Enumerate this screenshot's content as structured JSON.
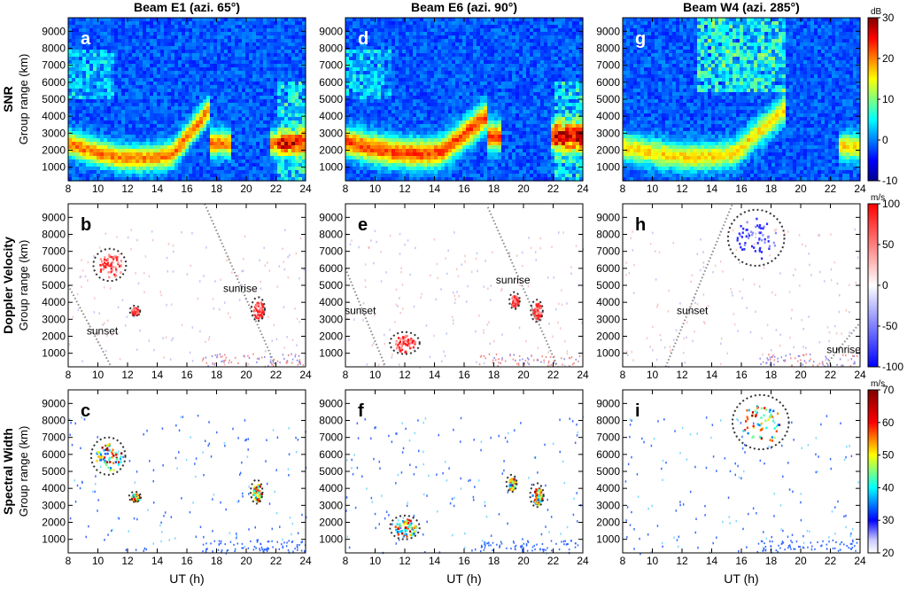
{
  "chart_data": {
    "type": "heatmap",
    "columns": [
      {
        "title": "Beam E1 (azi. 65°)"
      },
      {
        "title": "Beam E6 (azi. 90°)"
      },
      {
        "title": "Beam W4 (azi. 285°)"
      }
    ],
    "rows": [
      {
        "label": "SNR",
        "ylabel": "Group range (km)",
        "unit": "dB",
        "colorbar_ticks": [
          -10,
          0,
          10,
          20,
          30
        ],
        "crange": [
          -10,
          30
        ]
      },
      {
        "label": "Doppler Velocity",
        "ylabel": "Group range (km)",
        "unit": "m/s",
        "colorbar_ticks": [
          -100,
          -50,
          0,
          50,
          100
        ],
        "crange": [
          -100,
          100
        ]
      },
      {
        "label": "Spectral Width",
        "ylabel": "Group range (km)",
        "unit": "m/s",
        "colorbar_ticks": [
          20,
          30,
          40,
          50,
          60,
          70
        ],
        "crange": [
          20,
          70
        ]
      }
    ],
    "xlabel": "UT (h)",
    "xlim": [
      8,
      24
    ],
    "x_ticks": [
      8,
      10,
      12,
      14,
      16,
      18,
      20,
      22,
      24
    ],
    "ylim": [
      200,
      9800
    ],
    "y_ticks": [
      1000,
      2000,
      3000,
      4000,
      5000,
      6000,
      7000,
      8000,
      9000
    ],
    "panels": [
      {
        "id": "a",
        "row": 0,
        "col": 0,
        "letter": "a"
      },
      {
        "id": "b",
        "row": 1,
        "col": 0,
        "letter": "b",
        "terminators": [
          {
            "t1": 8.0,
            "r1": 5000,
            "t2": 10.9,
            "r2": 200
          },
          {
            "t1": 17.2,
            "r1": 9800,
            "t2": 22.0,
            "r2": 200
          }
        ],
        "circles": [
          {
            "t": 10.8,
            "r": 6200,
            "rt": 1.1,
            "rr": 950
          },
          {
            "t": 12.5,
            "r": 3500,
            "rt": 0.35,
            "rr": 300
          },
          {
            "t": 20.8,
            "r": 3600,
            "rt": 0.45,
            "rr": 700
          }
        ],
        "annotations": [
          {
            "text": "sunset",
            "t": 10.3,
            "r": 2100
          },
          {
            "text": "sunrise",
            "t": 19.6,
            "r": 4600
          }
        ]
      },
      {
        "id": "c",
        "row": 2,
        "col": 0,
        "letter": "c",
        "circles": [
          {
            "t": 10.7,
            "r": 5900,
            "rt": 1.15,
            "rr": 1100
          },
          {
            "t": 12.5,
            "r": 3500,
            "rt": 0.4,
            "rr": 300
          },
          {
            "t": 20.7,
            "r": 3800,
            "rt": 0.4,
            "rr": 700
          }
        ]
      },
      {
        "id": "d",
        "row": 0,
        "col": 1,
        "letter": "d"
      },
      {
        "id": "e",
        "row": 1,
        "col": 1,
        "letter": "e",
        "terminators": [
          {
            "t1": 8.0,
            "r1": 6000,
            "t2": 10.7,
            "r2": 200
          },
          {
            "t1": 17.6,
            "r1": 9600,
            "t2": 22.3,
            "r2": 200
          }
        ],
        "circles": [
          {
            "t": 12.0,
            "r": 1600,
            "rt": 1.0,
            "rr": 650
          },
          {
            "t": 19.4,
            "r": 4100,
            "rt": 0.35,
            "rr": 500
          },
          {
            "t": 20.9,
            "r": 3500,
            "rt": 0.4,
            "rr": 650
          }
        ],
        "annotations": [
          {
            "text": "sunset",
            "t": 9.0,
            "r": 3300
          },
          {
            "text": "sunrise",
            "t": 19.3,
            "r": 5100
          }
        ]
      },
      {
        "id": "f",
        "row": 2,
        "col": 1,
        "letter": "f",
        "circles": [
          {
            "t": 12.0,
            "r": 1700,
            "rt": 1.0,
            "rr": 700
          },
          {
            "t": 19.2,
            "r": 4300,
            "rt": 0.35,
            "rr": 500
          },
          {
            "t": 20.9,
            "r": 3600,
            "rt": 0.45,
            "rr": 700
          }
        ]
      },
      {
        "id": "g",
        "row": 0,
        "col": 2,
        "letter": "g"
      },
      {
        "id": "h",
        "row": 1,
        "col": 2,
        "letter": "h",
        "terminators": [
          {
            "t1": 10.9,
            "r1": 200,
            "t2": 15.4,
            "r2": 9800
          },
          {
            "t1": 21.6,
            "r1": 200,
            "t2": 24.0,
            "r2": 2800
          }
        ],
        "circles": [
          {
            "t": 17.0,
            "r": 7800,
            "rt": 1.9,
            "rr": 1650
          }
        ],
        "annotations": [
          {
            "text": "sunset",
            "t": 12.7,
            "r": 3300
          },
          {
            "text": "sunrise",
            "t": 22.9,
            "r": 1000
          }
        ]
      },
      {
        "id": "i",
        "row": 2,
        "col": 2,
        "letter": "i",
        "circles": [
          {
            "t": 17.3,
            "r": 7900,
            "rt": 1.9,
            "rr": 1600
          }
        ]
      }
    ]
  }
}
